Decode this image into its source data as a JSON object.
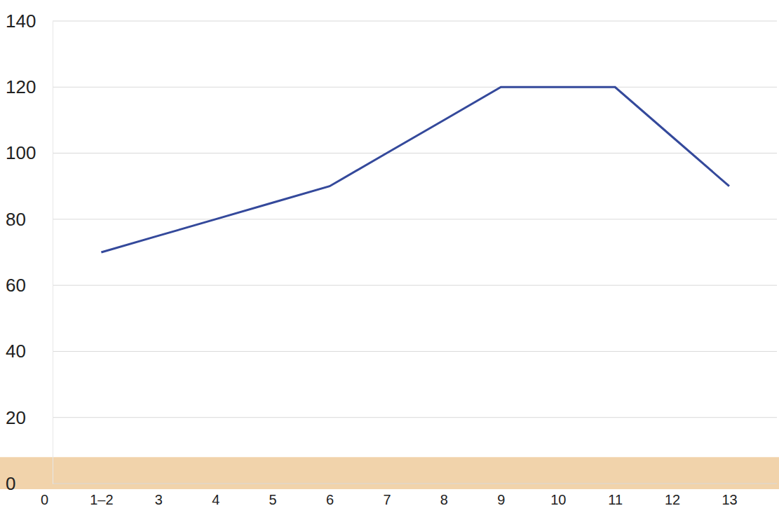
{
  "chart_data": {
    "type": "line",
    "categories": [
      "0",
      "1–2",
      "3",
      "4",
      "5",
      "6",
      "7",
      "8",
      "9",
      "10",
      "11",
      "12",
      "13"
    ],
    "values": [
      null,
      70,
      75,
      80,
      85,
      90,
      100,
      110,
      120,
      120,
      120,
      105,
      90
    ],
    "color": "#34499b",
    "marker": "none",
    "line_style": "solid",
    "ylim": [
      0,
      140
    ],
    "yticks": [
      0,
      20,
      40,
      60,
      80,
      100,
      120,
      140
    ],
    "grid": true
  }
}
